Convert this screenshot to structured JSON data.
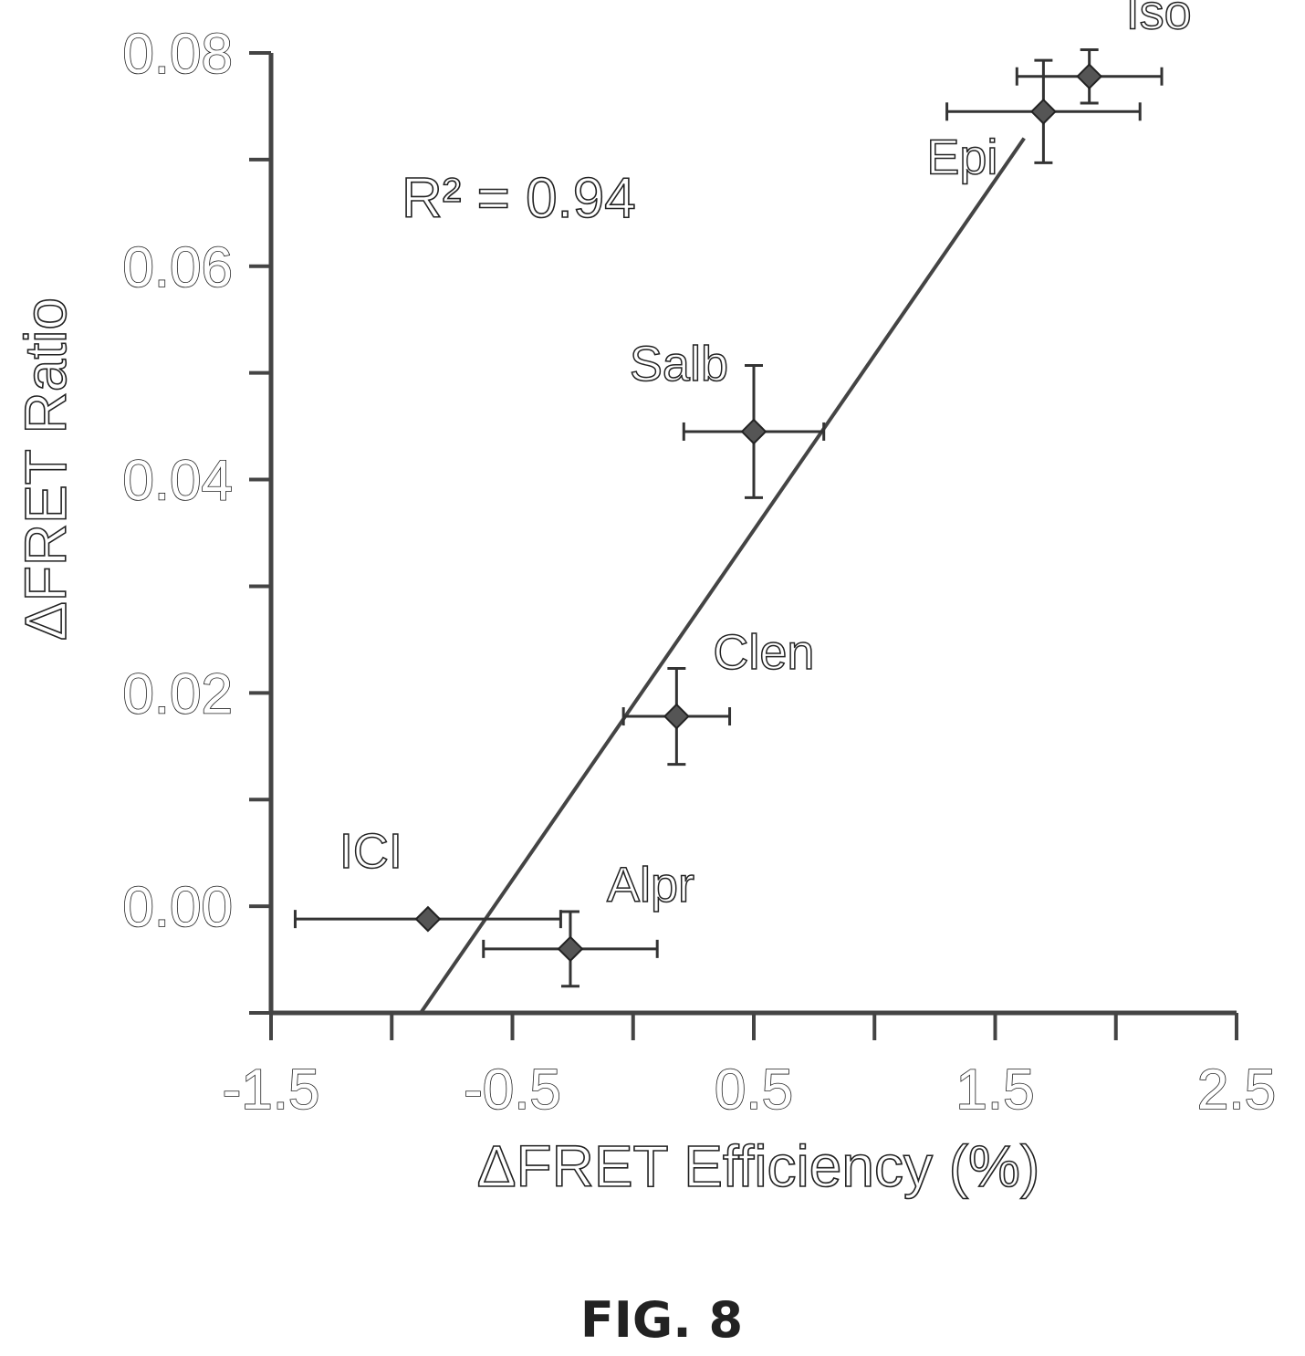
{
  "chart_data": {
    "type": "scatter",
    "xlabel": "ΔFRET Efficiency (%)",
    "ylabel": "ΔFRET Ratio",
    "xlim": [
      -1.5,
      2.5
    ],
    "ylim": [
      -0.01,
      0.08
    ],
    "x_ticks": [
      -1.5,
      -0.5,
      0.5,
      1.5,
      2.5
    ],
    "x_tick_labels": [
      "-1.5",
      "-0.5",
      "0.5",
      "1.5",
      "2.5"
    ],
    "x_minor_ticks": [
      -1.0,
      0.0,
      1.0,
      2.0
    ],
    "y_ticks": [
      0.0,
      0.02,
      0.04,
      0.06,
      0.08
    ],
    "y_tick_labels": [
      "0.00",
      "0.02",
      "0.04",
      "0.06",
      "0.08"
    ],
    "y_minor_ticks": [
      -0.01,
      0.01,
      0.03,
      0.05,
      0.07
    ],
    "grid": false,
    "points": [
      {
        "label": "Iso",
        "x": 1.89,
        "y": 0.0778,
        "xerr": 0.3,
        "yerr": 0.0025,
        "label_pos": "right-up"
      },
      {
        "label": "Epi",
        "x": 1.7,
        "y": 0.0745,
        "xerr": 0.4,
        "yerr": 0.0048,
        "label_pos": "left-down"
      },
      {
        "label": "Salb",
        "x": 0.5,
        "y": 0.0445,
        "xerr": 0.29,
        "yerr": 0.0062,
        "label_pos": "left-up"
      },
      {
        "label": "Clen",
        "x": 0.18,
        "y": 0.0178,
        "xerr": 0.22,
        "yerr": 0.0045,
        "label_pos": "right-up"
      },
      {
        "label": "ICI",
        "x": -0.85,
        "y": -0.0012,
        "xerr": 0.55,
        "yerr": 0.0,
        "label_pos": "left-up"
      },
      {
        "label": "Alpr",
        "x": -0.26,
        "y": -0.004,
        "xerr": 0.36,
        "yerr": 0.0035,
        "label_pos": "right-up"
      }
    ],
    "fit_line": {
      "x": [
        -0.88,
        1.62
      ],
      "y": [
        -0.01,
        0.072
      ]
    },
    "annotation": "R² = 0.94"
  },
  "figure_label": "FIG. 8"
}
